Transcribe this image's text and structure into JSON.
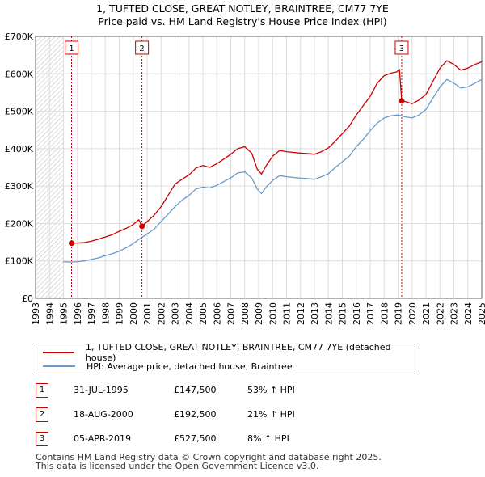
{
  "chart_data": {
    "type": "line",
    "title": "1, TUFTED CLOSE, GREAT NOTLEY, BRAINTREE, CM77 7YE",
    "subtitle": "Price paid vs. HM Land Registry's House Price Index (HPI)",
    "xlabel": "",
    "ylabel": "",
    "xlim": [
      1993,
      2025
    ],
    "ylim": [
      0,
      700000
    ],
    "x_ticks": [
      "1993",
      "1994",
      "1995",
      "1996",
      "1997",
      "1998",
      "1999",
      "2000",
      "2001",
      "2002",
      "2003",
      "2004",
      "2005",
      "2006",
      "2007",
      "2008",
      "2009",
      "2010",
      "2011",
      "2012",
      "2013",
      "2014",
      "2015",
      "2016",
      "2017",
      "2018",
      "2019",
      "2020",
      "2021",
      "2022",
      "2023",
      "2024",
      "2025"
    ],
    "y_ticks": [
      {
        "value": 0,
        "label": "£0"
      },
      {
        "value": 100000,
        "label": "£100K"
      },
      {
        "value": 200000,
        "label": "£200K"
      },
      {
        "value": 300000,
        "label": "£300K"
      },
      {
        "value": 400000,
        "label": "£400K"
      },
      {
        "value": 500000,
        "label": "£500K"
      },
      {
        "value": 600000,
        "label": "£600K"
      },
      {
        "value": 700000,
        "label": "£700K"
      }
    ],
    "grid": true,
    "hatched_before": 1995.0,
    "series": [
      {
        "name": "1, TUFTED CLOSE, GREAT NOTLEY, BRAINTREE, CM77 7YE (detached house)",
        "color": "#cc0000",
        "points": [
          [
            1995.58,
            147500
          ],
          [
            1996.0,
            148000
          ],
          [
            1996.5,
            149000
          ],
          [
            1997.0,
            153000
          ],
          [
            1997.5,
            158000
          ],
          [
            1998.0,
            164000
          ],
          [
            1998.5,
            170000
          ],
          [
            1999.0,
            179000
          ],
          [
            1999.5,
            187000
          ],
          [
            2000.0,
            197000
          ],
          [
            2000.4,
            210000
          ],
          [
            2000.63,
            192500
          ],
          [
            2001.0,
            205000
          ],
          [
            2001.5,
            222000
          ],
          [
            2002.0,
            245000
          ],
          [
            2002.5,
            275000
          ],
          [
            2003.0,
            305000
          ],
          [
            2003.5,
            318000
          ],
          [
            2004.0,
            330000
          ],
          [
            2004.5,
            348000
          ],
          [
            2005.0,
            355000
          ],
          [
            2005.5,
            350000
          ],
          [
            2006.0,
            360000
          ],
          [
            2006.5,
            372000
          ],
          [
            2007.0,
            385000
          ],
          [
            2007.5,
            400000
          ],
          [
            2008.0,
            405000
          ],
          [
            2008.5,
            388000
          ],
          [
            2008.9,
            345000
          ],
          [
            2009.2,
            332000
          ],
          [
            2009.6,
            358000
          ],
          [
            2010.0,
            380000
          ],
          [
            2010.5,
            395000
          ],
          [
            2011.0,
            392000
          ],
          [
            2011.5,
            390000
          ],
          [
            2012.0,
            388000
          ],
          [
            2012.5,
            387000
          ],
          [
            2013.0,
            385000
          ],
          [
            2013.5,
            392000
          ],
          [
            2014.0,
            402000
          ],
          [
            2014.5,
            420000
          ],
          [
            2015.0,
            440000
          ],
          [
            2015.5,
            460000
          ],
          [
            2016.0,
            490000
          ],
          [
            2016.5,
            515000
          ],
          [
            2017.0,
            540000
          ],
          [
            2017.5,
            575000
          ],
          [
            2018.0,
            595000
          ],
          [
            2018.5,
            602000
          ],
          [
            2018.9,
            605000
          ],
          [
            2019.1,
            612000
          ],
          [
            2019.26,
            527500
          ],
          [
            2019.6,
            525000
          ],
          [
            2020.0,
            520000
          ],
          [
            2020.5,
            530000
          ],
          [
            2021.0,
            545000
          ],
          [
            2021.5,
            580000
          ],
          [
            2022.0,
            615000
          ],
          [
            2022.5,
            635000
          ],
          [
            2023.0,
            625000
          ],
          [
            2023.5,
            610000
          ],
          [
            2024.0,
            615000
          ],
          [
            2024.5,
            625000
          ],
          [
            2025.0,
            632000
          ]
        ]
      },
      {
        "name": "HPI: Average price, detached house, Braintree",
        "color": "#6699cc",
        "points": [
          [
            1995.0,
            98000
          ],
          [
            1995.5,
            97000
          ],
          [
            1996.0,
            98000
          ],
          [
            1996.5,
            100000
          ],
          [
            1997.0,
            104000
          ],
          [
            1997.5,
            108000
          ],
          [
            1998.0,
            114000
          ],
          [
            1998.5,
            119000
          ],
          [
            1999.0,
            126000
          ],
          [
            1999.5,
            135000
          ],
          [
            2000.0,
            146000
          ],
          [
            2000.5,
            160000
          ],
          [
            2001.0,
            172000
          ],
          [
            2001.5,
            185000
          ],
          [
            2002.0,
            205000
          ],
          [
            2002.5,
            225000
          ],
          [
            2003.0,
            245000
          ],
          [
            2003.5,
            262000
          ],
          [
            2004.0,
            275000
          ],
          [
            2004.5,
            292000
          ],
          [
            2005.0,
            297000
          ],
          [
            2005.5,
            295000
          ],
          [
            2006.0,
            302000
          ],
          [
            2006.5,
            312000
          ],
          [
            2007.0,
            322000
          ],
          [
            2007.5,
            335000
          ],
          [
            2008.0,
            338000
          ],
          [
            2008.5,
            322000
          ],
          [
            2008.9,
            292000
          ],
          [
            2009.2,
            280000
          ],
          [
            2009.6,
            300000
          ],
          [
            2010.0,
            315000
          ],
          [
            2010.5,
            328000
          ],
          [
            2011.0,
            325000
          ],
          [
            2011.5,
            323000
          ],
          [
            2012.0,
            321000
          ],
          [
            2012.5,
            320000
          ],
          [
            2013.0,
            318000
          ],
          [
            2013.5,
            325000
          ],
          [
            2014.0,
            333000
          ],
          [
            2014.5,
            350000
          ],
          [
            2015.0,
            365000
          ],
          [
            2015.5,
            380000
          ],
          [
            2016.0,
            405000
          ],
          [
            2016.5,
            425000
          ],
          [
            2017.0,
            448000
          ],
          [
            2017.5,
            468000
          ],
          [
            2018.0,
            482000
          ],
          [
            2018.5,
            488000
          ],
          [
            2019.0,
            490000
          ],
          [
            2019.5,
            485000
          ],
          [
            2020.0,
            482000
          ],
          [
            2020.5,
            490000
          ],
          [
            2021.0,
            505000
          ],
          [
            2021.5,
            535000
          ],
          [
            2022.0,
            565000
          ],
          [
            2022.5,
            585000
          ],
          [
            2023.0,
            575000
          ],
          [
            2023.5,
            562000
          ],
          [
            2024.0,
            565000
          ],
          [
            2024.5,
            575000
          ],
          [
            2025.0,
            585000
          ]
        ]
      }
    ],
    "annotations": [
      {
        "label": "1",
        "x": 1995.58,
        "y": 147500
      },
      {
        "label": "2",
        "x": 2000.63,
        "y": 192500
      },
      {
        "label": "3",
        "x": 2019.26,
        "y": 527500
      }
    ]
  },
  "legend": {
    "items": [
      {
        "label": "1, TUFTED CLOSE, GREAT NOTLEY, BRAINTREE, CM77 7YE (detached house)",
        "color": "#cc0000"
      },
      {
        "label": "HPI: Average price, detached house, Braintree",
        "color": "#6699cc"
      }
    ]
  },
  "sales": [
    {
      "num": "1",
      "date": "31-JUL-1995",
      "price": "£147,500",
      "hpi": "53% ↑ HPI"
    },
    {
      "num": "2",
      "date": "18-AUG-2000",
      "price": "£192,500",
      "hpi": "21% ↑ HPI"
    },
    {
      "num": "3",
      "date": "05-APR-2019",
      "price": "£527,500",
      "hpi": "8% ↑ HPI"
    }
  ],
  "footer": {
    "line1": "Contains HM Land Registry data © Crown copyright and database right 2025.",
    "line2": "This data is licensed under the Open Government Licence v3.0."
  }
}
